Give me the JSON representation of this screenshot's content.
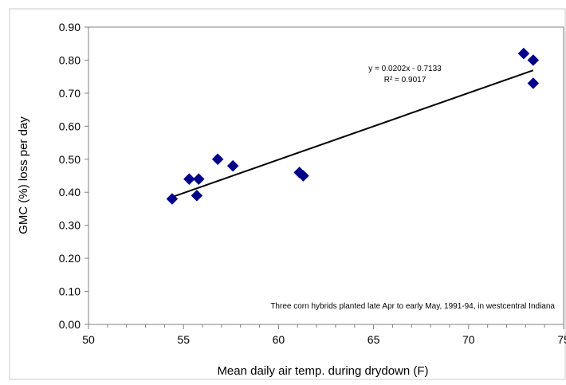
{
  "chart_data": {
    "type": "scatter",
    "title": "",
    "xlabel": "Mean daily air temp. during drydown (F)",
    "ylabel": "GMC (%) loss per day",
    "xlim": [
      50,
      75
    ],
    "ylim": [
      0.0,
      0.9
    ],
    "x_ticks": [
      50,
      55,
      60,
      65,
      70,
      75
    ],
    "x_tick_labels": [
      "50",
      "55",
      "60",
      "65",
      "70",
      "75"
    ],
    "y_ticks": [
      0.0,
      0.1,
      0.2,
      0.3,
      0.4,
      0.5,
      0.6,
      0.7,
      0.8,
      0.9
    ],
    "y_tick_labels": [
      "0.00",
      "0.10",
      "0.20",
      "0.30",
      "0.40",
      "0.50",
      "0.60",
      "0.70",
      "0.80",
      "0.90"
    ],
    "grid": false,
    "legend": "none",
    "marker": "diamond",
    "marker_color": "#00008B",
    "series": [
      {
        "points": [
          {
            "x": 54.4,
            "y": 0.38
          },
          {
            "x": 55.3,
            "y": 0.44
          },
          {
            "x": 55.7,
            "y": 0.39
          },
          {
            "x": 55.8,
            "y": 0.44
          },
          {
            "x": 56.8,
            "y": 0.5
          },
          {
            "x": 57.6,
            "y": 0.48
          },
          {
            "x": 61.1,
            "y": 0.46
          },
          {
            "x": 61.3,
            "y": 0.45
          },
          {
            "x": 72.9,
            "y": 0.82
          },
          {
            "x": 73.4,
            "y": 0.8
          },
          {
            "x": 73.4,
            "y": 0.73
          }
        ]
      }
    ],
    "trendline": {
      "type": "linear",
      "slope": 0.0202,
      "intercept": -0.7133,
      "x_range": [
        54.4,
        73.4
      ],
      "color": "#000000",
      "equation_text": "y = 0.0202x - 0.7133",
      "r2_text": "R² = 0.9017"
    },
    "annotation": "Three corn hybrids planted late Apr to early May, 1991-94, in westcentral Indiana"
  }
}
